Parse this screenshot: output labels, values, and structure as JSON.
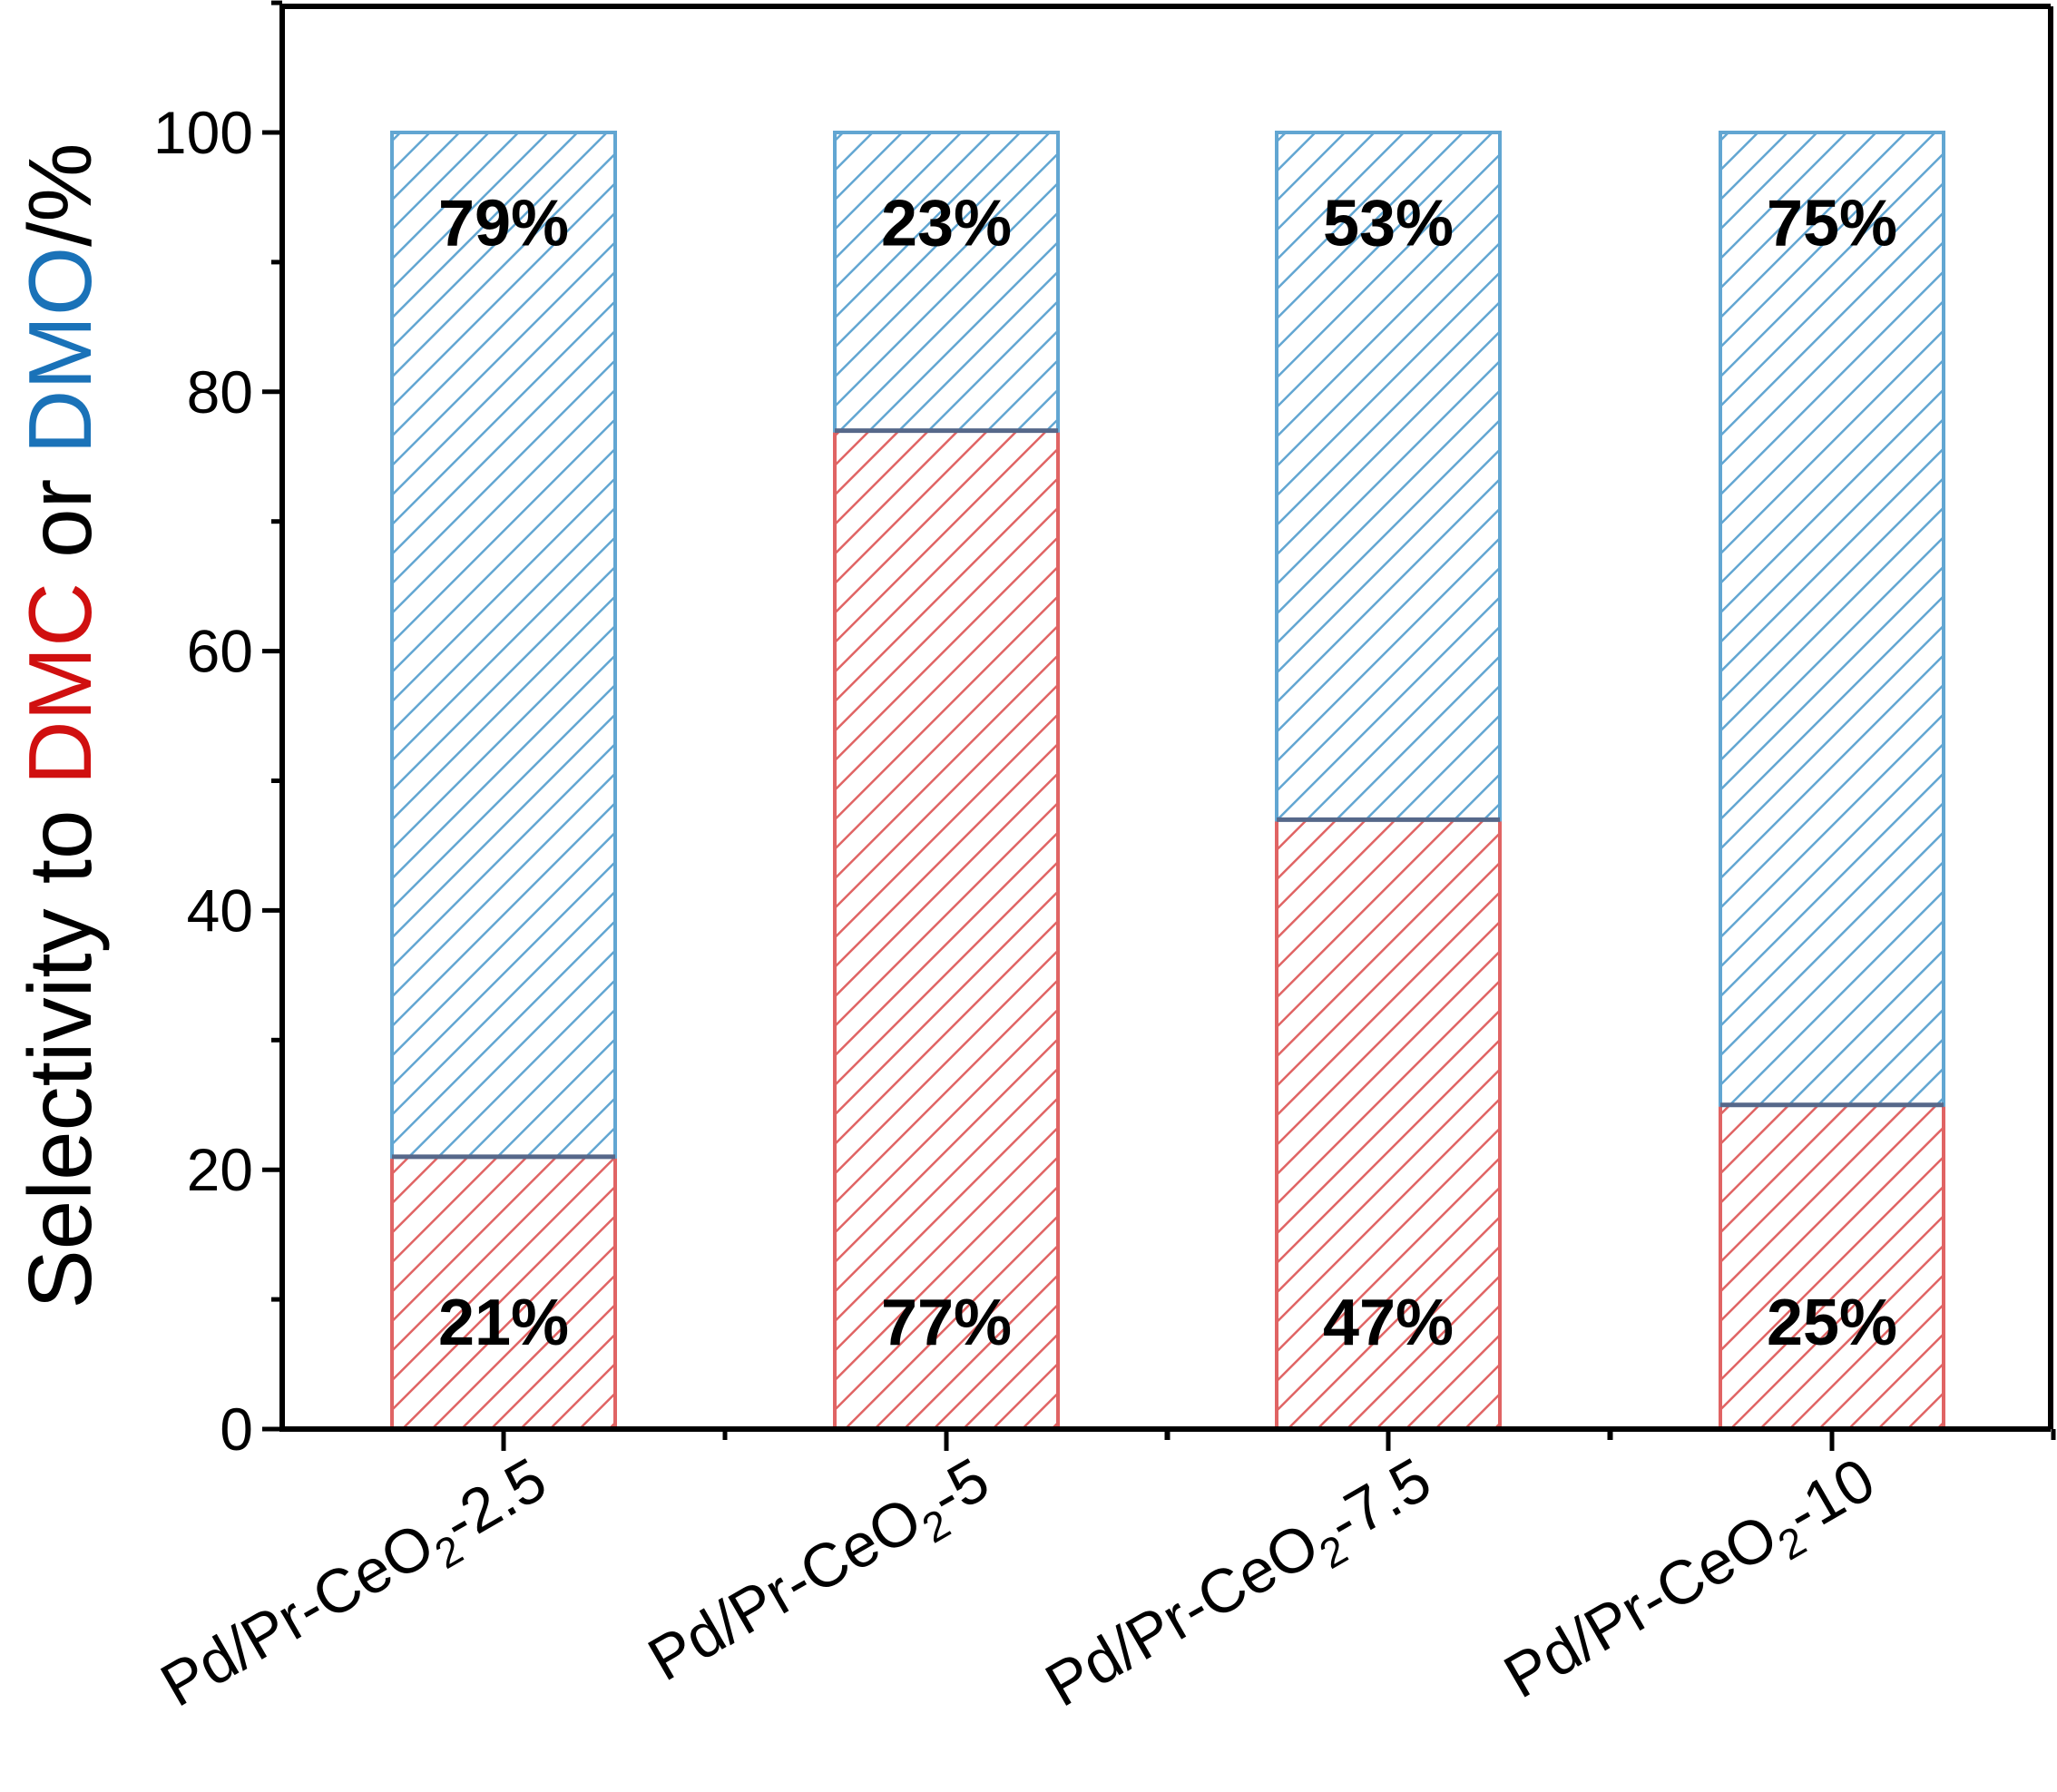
{
  "chart_data": {
    "type": "bar",
    "stacked": true,
    "categories": [
      "Pd/Pr-CeO2-2.5",
      "Pd/Pr-CeO2-5",
      "Pd/Pr-CeO2-7.5",
      "Pd/Pr-CeO2-10"
    ],
    "category_labels": [
      {
        "pre": "Pd/Pr-CeO",
        "sub": "2",
        "post": "-2.5"
      },
      {
        "pre": "Pd/Pr-CeO",
        "sub": "2",
        "post": "-5"
      },
      {
        "pre": "Pd/Pr-CeO",
        "sub": "2",
        "post": "-7.5"
      },
      {
        "pre": "Pd/Pr-CeO",
        "sub": "2",
        "post": "-10"
      }
    ],
    "series": [
      {
        "name": "DMC",
        "color": "#e06464",
        "values": [
          21,
          77,
          47,
          25
        ],
        "labels": [
          "21%",
          "77%",
          "47%",
          "25%"
        ]
      },
      {
        "name": "DMO",
        "color": "#62a6d2",
        "values": [
          79,
          23,
          53,
          75
        ],
        "labels": [
          "79%",
          "23%",
          "53%",
          "75%"
        ]
      }
    ],
    "ylabel": {
      "prefix": "Selectivity to ",
      "dmc": "DMC",
      "mid": " or ",
      "dmo": "DMO",
      "suffix": "/%"
    },
    "ylabel_colors": {
      "dmc": "#d01010",
      "dmo": "#1a72b8"
    },
    "ylim": [
      0,
      110
    ],
    "yticks": [
      0,
      20,
      40,
      60,
      80,
      100
    ],
    "pattern": "diagonal-hatch",
    "grid": false
  }
}
